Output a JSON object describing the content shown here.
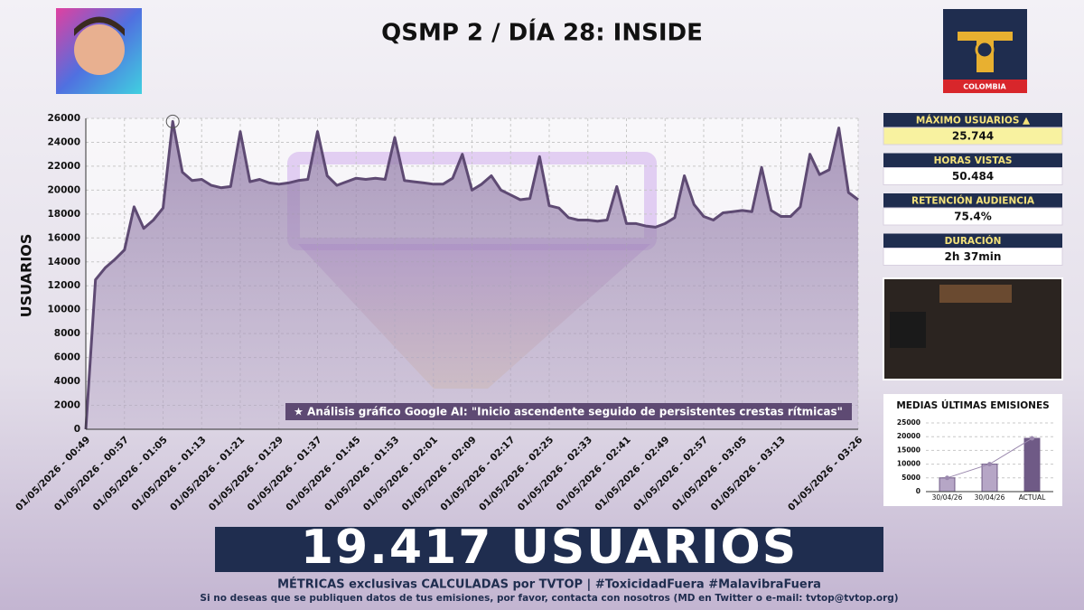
{
  "header": {
    "title": "QSMP 2 / DÍA 28: INSIDE",
    "logo_text": "COLOMBIA"
  },
  "stats": [
    {
      "label": "MÁXIMO USUARIOS ▲",
      "value": "25.744"
    },
    {
      "label": "HORAS VISTAS",
      "value": "50.484"
    },
    {
      "label": "RETENCIÓN AUDIENCIA",
      "value": "75.4%"
    },
    {
      "label": "DURACIÓN",
      "value": "2h 37min"
    }
  ],
  "chart_data": [
    {
      "type": "area",
      "ylabel": "USUARIOS",
      "annotation": "★ Análisis gráfico Google AI: \"Inicio ascendente seguido de persistentes crestas rítmicas\"",
      "color": "#5e4a73",
      "fill": "#8f78a6",
      "grid": true,
      "ylim": [
        0,
        26000
      ],
      "yticks": [
        0,
        2000,
        4000,
        6000,
        8000,
        10000,
        12000,
        14000,
        16000,
        18000,
        20000,
        22000,
        24000,
        26000
      ],
      "categories": [
        "01/05/2026 - 00:49",
        null,
        null,
        null,
        "01/05/2026 - 00:57",
        null,
        null,
        null,
        "01/05/2026 - 01:05",
        null,
        null,
        null,
        "01/05/2026 - 01:13",
        null,
        null,
        null,
        "01/05/2026 - 01:21",
        null,
        null,
        null,
        "01/05/2026 - 01:29",
        null,
        null,
        null,
        "01/05/2026 - 01:37",
        null,
        null,
        null,
        "01/05/2026 - 01:45",
        null,
        null,
        null,
        "01/05/2026 - 01:53",
        null,
        null,
        null,
        "01/05/2026 - 02:01",
        null,
        null,
        null,
        "01/05/2026 - 02:09",
        null,
        null,
        null,
        "01/05/2026 - 02:17",
        null,
        null,
        null,
        "01/05/2026 - 02:25",
        null,
        null,
        null,
        "01/05/2026 - 02:33",
        null,
        null,
        null,
        "01/05/2026 - 02:41",
        null,
        null,
        null,
        "01/05/2026 - 02:49",
        null,
        null,
        null,
        "01/05/2026 - 02:57",
        null,
        null,
        null,
        "01/05/2026 - 03:05",
        null,
        null,
        null,
        "01/05/2026 - 03:13",
        null,
        null,
        null,
        null,
        null,
        null,
        null,
        "01/05/2026 - 03:26"
      ],
      "values": [
        0,
        12500,
        13500,
        14200,
        15000,
        18600,
        16800,
        17500,
        18500,
        25744,
        21500,
        20800,
        20900,
        20400,
        20200,
        20300,
        24900,
        20700,
        20900,
        20600,
        20500,
        20600,
        20800,
        20900,
        24900,
        21200,
        20400,
        20700,
        21000,
        20900,
        21000,
        20900,
        24400,
        20800,
        20700,
        20600,
        20500,
        20500,
        21000,
        23000,
        20000,
        20500,
        21200,
        20000,
        19600,
        19200,
        19300,
        22800,
        18700,
        18500,
        17700,
        17500,
        17500,
        17400,
        17500,
        20300,
        17200,
        17200,
        17000,
        16900,
        17200,
        17700,
        21200,
        18800,
        17800,
        17500,
        18100,
        18200,
        18300,
        18200,
        21900,
        18300,
        17800,
        17800,
        18600,
        23000,
        21300,
        21700,
        25200,
        19800,
        19200
      ]
    },
    {
      "type": "bar",
      "title": "MEDIAS ÚLTIMAS EMISIONES",
      "color": "#8f78a6",
      "ylim": [
        0,
        25000
      ],
      "yticks": [
        0,
        5000,
        10000,
        15000,
        20000,
        25000
      ],
      "categories": [
        "30/04/26",
        "30/04/26",
        "ACTUAL"
      ],
      "values": [
        5000,
        10000,
        19400
      ]
    }
  ],
  "footer": {
    "big_number": "19.417 USUARIOS",
    "line1": "MÉTRICAS exclusivas CALCULADAS por TVTOP | #ToxicidadFuera #MalavibraFuera",
    "line2": "Si no deseas que se publiquen datos de tus emisiones, por favor, contacta con nosotros (MD en Twitter o e-mail: tvtop@tvtop.org)"
  }
}
